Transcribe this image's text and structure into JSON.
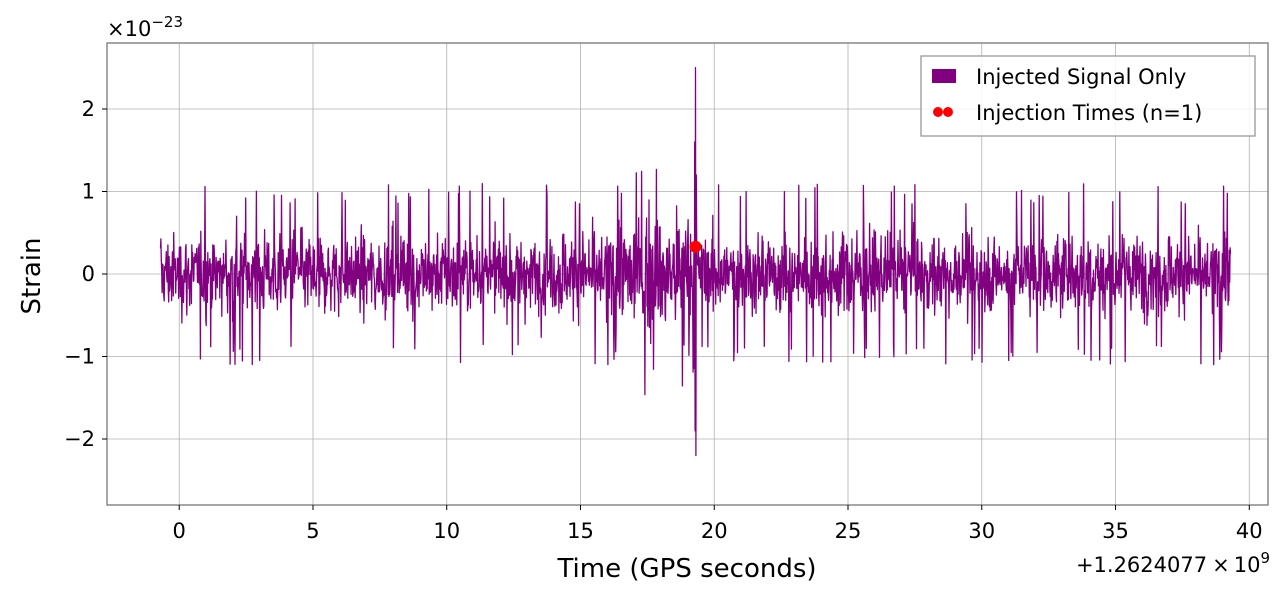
{
  "chart_data": {
    "type": "line",
    "xlabel": "Time (GPS seconds)",
    "ylabel": "Strain",
    "x_offset_text": "+1.2624077",
    "x_offset_exp": "9",
    "y_scale_text": "×10",
    "y_scale_exp": "−23",
    "xlim": [
      -2.7,
      40.7
    ],
    "ylim": [
      -2.8,
      2.8
    ],
    "x_ticks": [
      0,
      5,
      10,
      15,
      20,
      25,
      30,
      35,
      40
    ],
    "x_tick_labels": [
      "0",
      "5",
      "10",
      "15",
      "20",
      "25",
      "30",
      "35",
      "40"
    ],
    "y_ticks": [
      -2,
      -1,
      0,
      1,
      2
    ],
    "y_tick_labels": [
      "−2",
      "−1",
      "0",
      "1",
      "2"
    ],
    "grid": true,
    "legend_position": "top-right",
    "colors": {
      "signal": "#800080",
      "injection": "#ff0000",
      "grid": "#b0b0b0",
      "frame": "#808080"
    },
    "series": [
      {
        "name": "Injected Signal Only",
        "kind": "line",
        "x_start": -0.7,
        "x_end": 39.3,
        "background_envelope": 0.65,
        "typical_peak": 1.0,
        "chirp_start": 12.0,
        "merger_time": 19.3,
        "merger_peak_high": 2.5,
        "merger_peak_low": -2.55
      },
      {
        "name": "Injection Times (n=1)",
        "kind": "scatter",
        "points": [
          {
            "x": 19.3,
            "y": 0.33
          }
        ]
      }
    ]
  }
}
